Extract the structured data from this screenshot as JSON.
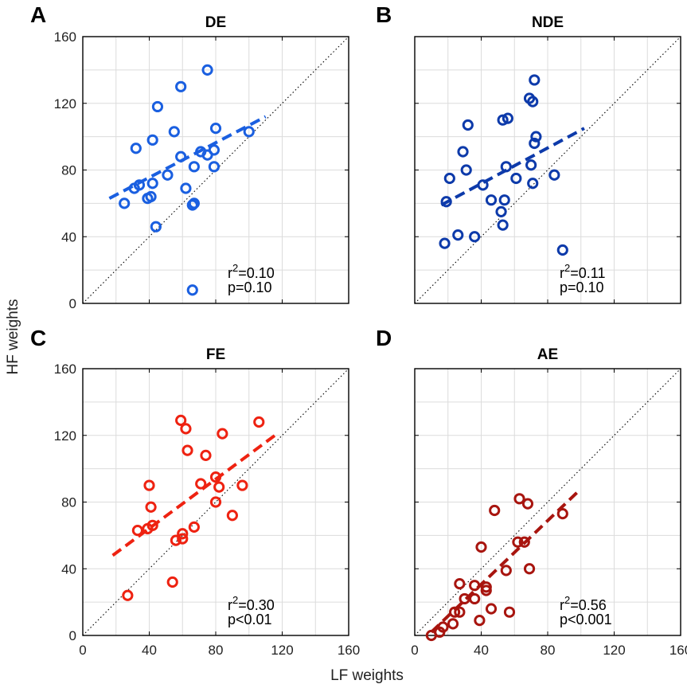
{
  "figure": {
    "xlabel": "LF weights",
    "ylabel": "HF weights"
  },
  "chart_data": [
    {
      "type": "scatter",
      "id": "A",
      "letter": "A",
      "title": "DE",
      "color": "#1a5fe0",
      "xlim": [
        0,
        160
      ],
      "ylim": [
        0,
        160
      ],
      "xticks": [
        0,
        40,
        80,
        120,
        160
      ],
      "yticks": [
        0,
        40,
        80,
        120,
        160
      ],
      "xtick_labels": [
        "",
        "",
        "",
        "",
        ""
      ],
      "ytick_labels": [
        "0",
        "40",
        "80",
        "120",
        "160"
      ],
      "grid": true,
      "identity_line": true,
      "stat_r2": "=0.10",
      "stat_p": "p=0.10",
      "points": [
        [
          75,
          140
        ],
        [
          59,
          130
        ],
        [
          45,
          118
        ],
        [
          55,
          103
        ],
        [
          80,
          105
        ],
        [
          100,
          103
        ],
        [
          32,
          93
        ],
        [
          42,
          98
        ],
        [
          71,
          91
        ],
        [
          79,
          92
        ],
        [
          75,
          89
        ],
        [
          59,
          88
        ],
        [
          67,
          82
        ],
        [
          79,
          82
        ],
        [
          51,
          77
        ],
        [
          31,
          69
        ],
        [
          34,
          71
        ],
        [
          42,
          72
        ],
        [
          41,
          64
        ],
        [
          39,
          63
        ],
        [
          62,
          69
        ],
        [
          25,
          60
        ],
        [
          67,
          60
        ],
        [
          66,
          59
        ],
        [
          44,
          46
        ],
        [
          66,
          8
        ]
      ],
      "fit": {
        "x": [
          16,
          110
        ],
        "y": [
          63,
          112
        ]
      }
    },
    {
      "type": "scatter",
      "id": "B",
      "letter": "B",
      "title": "NDE",
      "color": "#0d3aaa",
      "xlim": [
        0,
        160
      ],
      "ylim": [
        0,
        160
      ],
      "xticks": [
        0,
        40,
        80,
        120,
        160
      ],
      "yticks": [
        0,
        40,
        80,
        120,
        160
      ],
      "xtick_labels": [
        "",
        "",
        "",
        "",
        ""
      ],
      "ytick_labels": [
        "",
        "",
        "",
        "",
        ""
      ],
      "grid": true,
      "identity_line": true,
      "stat_r2": "=0.11",
      "stat_p": "p=0.10",
      "points": [
        [
          72,
          134
        ],
        [
          69,
          123
        ],
        [
          71,
          121
        ],
        [
          53,
          110
        ],
        [
          56,
          111
        ],
        [
          32,
          107
        ],
        [
          73,
          100
        ],
        [
          72,
          96
        ],
        [
          29,
          91
        ],
        [
          21,
          75
        ],
        [
          31,
          80
        ],
        [
          55,
          82
        ],
        [
          70,
          83
        ],
        [
          84,
          77
        ],
        [
          61,
          75
        ],
        [
          71,
          72
        ],
        [
          41,
          71
        ],
        [
          19,
          61
        ],
        [
          46,
          62
        ],
        [
          54,
          62
        ],
        [
          52,
          55
        ],
        [
          26,
          41
        ],
        [
          53,
          47
        ],
        [
          36,
          40
        ],
        [
          18,
          36
        ],
        [
          89,
          32
        ]
      ],
      "fit": {
        "x": [
          16,
          102
        ],
        "y": [
          59,
          105
        ]
      }
    },
    {
      "type": "scatter",
      "id": "C",
      "letter": "C",
      "title": "FE",
      "color": "#ee2211",
      "xlim": [
        0,
        160
      ],
      "ylim": [
        0,
        160
      ],
      "xticks": [
        0,
        40,
        80,
        120,
        160
      ],
      "yticks": [
        0,
        40,
        80,
        120,
        160
      ],
      "xtick_labels": [
        "0",
        "40",
        "80",
        "120",
        "160"
      ],
      "ytick_labels": [
        "0",
        "40",
        "80",
        "120",
        "160"
      ],
      "grid": true,
      "identity_line": true,
      "stat_r2": "=0.30",
      "stat_p": "p<0.01",
      "points": [
        [
          59,
          129
        ],
        [
          106,
          128
        ],
        [
          62,
          124
        ],
        [
          84,
          121
        ],
        [
          63,
          111
        ],
        [
          74,
          108
        ],
        [
          40,
          90
        ],
        [
          71,
          91
        ],
        [
          80,
          95
        ],
        [
          82,
          89
        ],
        [
          96,
          90
        ],
        [
          80,
          80
        ],
        [
          41,
          77
        ],
        [
          90,
          72
        ],
        [
          33,
          63
        ],
        [
          39,
          64
        ],
        [
          42,
          66
        ],
        [
          67,
          65
        ],
        [
          60,
          61
        ],
        [
          60,
          58
        ],
        [
          56,
          57
        ],
        [
          54,
          32
        ],
        [
          27,
          24
        ]
      ],
      "fit": {
        "x": [
          18,
          117
        ],
        "y": [
          48,
          121
        ]
      }
    },
    {
      "type": "scatter",
      "id": "D",
      "letter": "D",
      "title": "AE",
      "color": "#a8150f",
      "xlim": [
        0,
        160
      ],
      "ylim": [
        0,
        160
      ],
      "xticks": [
        0,
        40,
        80,
        120,
        160
      ],
      "yticks": [
        0,
        40,
        80,
        120,
        160
      ],
      "xtick_labels": [
        "0",
        "40",
        "80",
        "120",
        "160"
      ],
      "ytick_labels": [
        "",
        "",
        "",
        "",
        ""
      ],
      "grid": true,
      "identity_line": true,
      "stat_r2": "=0.56",
      "stat_p": "p<0.001",
      "points": [
        [
          63,
          82
        ],
        [
          68,
          79
        ],
        [
          48,
          75
        ],
        [
          89,
          73
        ],
        [
          62,
          56
        ],
        [
          66,
          56
        ],
        [
          40,
          53
        ],
        [
          69,
          40
        ],
        [
          55,
          39
        ],
        [
          43,
          29
        ],
        [
          27,
          31
        ],
        [
          36,
          30
        ],
        [
          43,
          27
        ],
        [
          30,
          22
        ],
        [
          36,
          22
        ],
        [
          24,
          14
        ],
        [
          46,
          16
        ],
        [
          27,
          14
        ],
        [
          57,
          14
        ],
        [
          39,
          9
        ],
        [
          23,
          7
        ],
        [
          17,
          5
        ],
        [
          15,
          2
        ],
        [
          10,
          0
        ]
      ],
      "fit": {
        "x": [
          10,
          99
        ],
        "y": [
          2,
          87
        ]
      }
    }
  ]
}
